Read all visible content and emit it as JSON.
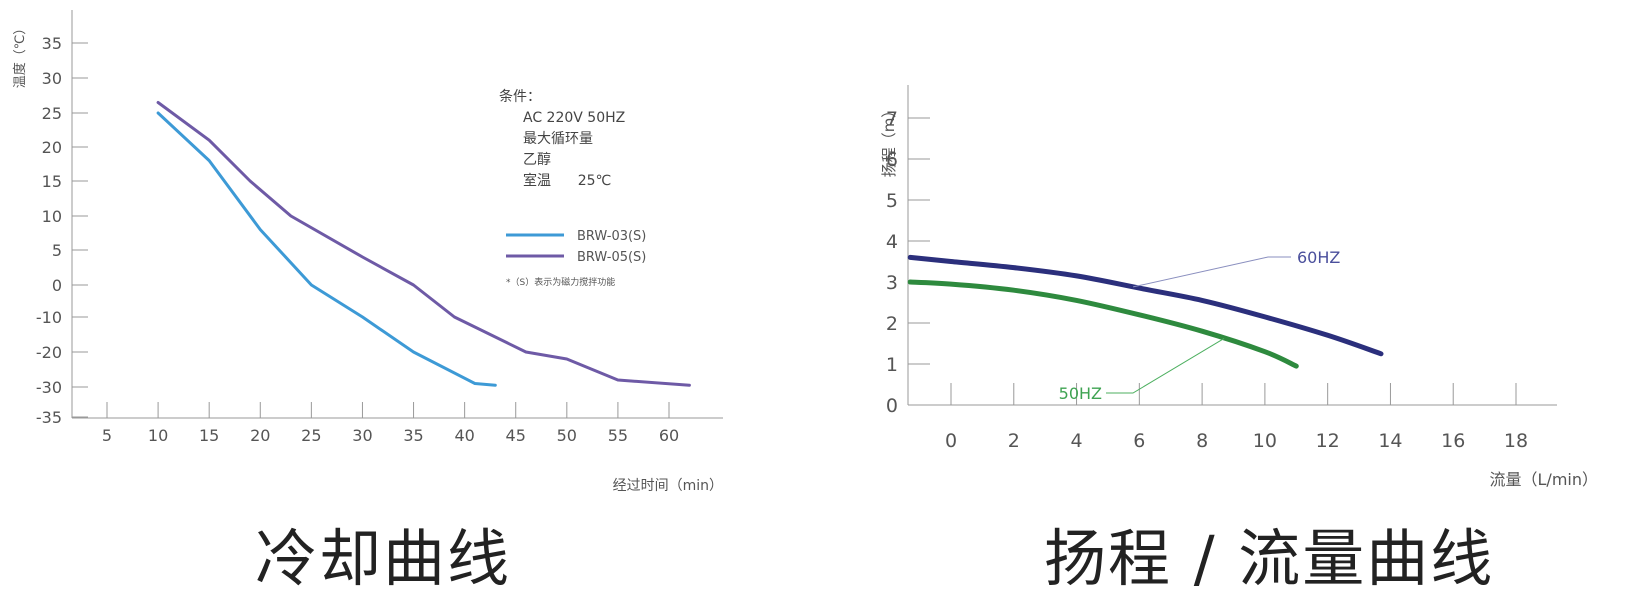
{
  "charts": [
    {
      "title": "冷却曲线",
      "chart_data": {
        "type": "line",
        "title": "冷却曲线",
        "xlabel": "经过时间（min）",
        "ylabel": "温度（℃）",
        "x_ticks": [
          5,
          10,
          15,
          20,
          25,
          30,
          35,
          40,
          45,
          50,
          55,
          60
        ],
        "y_ticks": [
          35,
          30,
          25,
          20,
          15,
          10,
          5,
          0,
          -10,
          -20,
          -30,
          -35
        ],
        "y_tick_labels": [
          "35",
          "30",
          "25",
          "20",
          "15",
          "10",
          "5",
          "0",
          "-10",
          "-20",
          "-30",
          "-35"
        ],
        "xlim": [
          0,
          64
        ],
        "grid": false,
        "legend_position": "right",
        "series": [
          {
            "name": "BRW-03(S)",
            "color": "#3d9ad6",
            "x": [
              10,
              15,
              20,
              25,
              30,
              35,
              41,
              43
            ],
            "y": [
              25,
              18,
              8,
              0,
              -10,
              -20,
              -29,
              -29.5
            ]
          },
          {
            "name": "BRW-05(S)",
            "color": "#6e5aa6",
            "x": [
              10,
              15,
              19,
              23,
              30,
              35,
              39,
              46,
              50,
              55,
              62
            ],
            "y": [
              26.5,
              21,
              15,
              10,
              4,
              0,
              -10,
              -20,
              -22,
              -28,
              -29.5
            ]
          }
        ],
        "annotations": {
          "conditions_heading": "条件：",
          "conditions": [
            "AC 220V 50HZ",
            "最大循环量",
            "乙醇",
            "室温      25℃"
          ],
          "footnote": "*（S）表示为磁力搅拌功能"
        }
      }
    },
    {
      "title": "扬程 / 流量曲线",
      "chart_data": {
        "type": "line",
        "title": "扬程 / 流量曲线",
        "xlabel": "流量（L/min）",
        "ylabel": "扬程（m）",
        "x_ticks": [
          0,
          2,
          4,
          6,
          8,
          10,
          12,
          14,
          16,
          18
        ],
        "y_ticks": [
          0,
          1,
          2,
          3,
          4,
          5,
          6,
          7
        ],
        "xlim": [
          -1.3,
          19.5
        ],
        "ylim": [
          0,
          7.7
        ],
        "grid": false,
        "series": [
          {
            "name": "60HZ",
            "color": "#2b2f7c",
            "x": [
              -1.3,
              0,
              2,
              4,
              6,
              8,
              10,
              12,
              13.7
            ],
            "y": [
              3.6,
              3.5,
              3.35,
              3.15,
              2.85,
              2.55,
              2.15,
              1.7,
              1.25
            ]
          },
          {
            "name": "50HZ",
            "color": "#2e8a3e",
            "x": [
              -1.3,
              0,
              2,
              4,
              6,
              8,
              10,
              11
            ],
            "y": [
              3.0,
              2.95,
              2.8,
              2.55,
              2.2,
              1.8,
              1.3,
              0.95
            ]
          }
        ],
        "annotations": [
          {
            "label": "60HZ",
            "series": "60HZ",
            "at_x": 5.8
          },
          {
            "label": "50HZ",
            "series": "50HZ",
            "at_x": 8.7
          }
        ]
      }
    }
  ]
}
